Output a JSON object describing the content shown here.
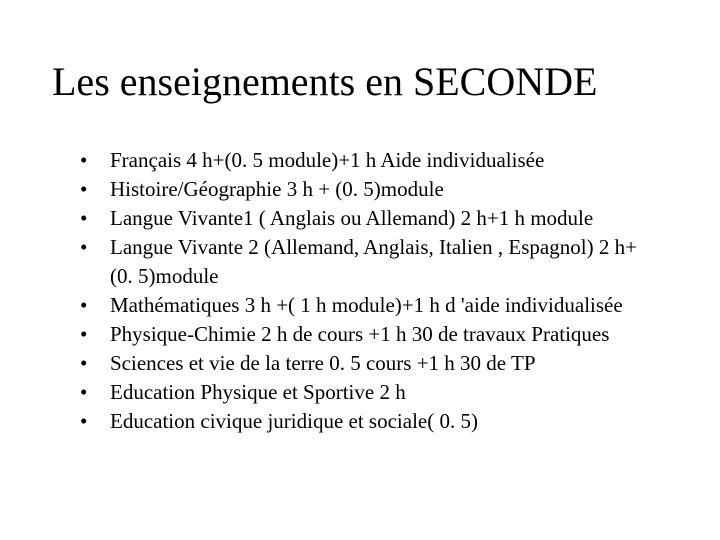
{
  "slide": {
    "title": "Les enseignements en SECONDE",
    "title_fontsize": 40,
    "title_color": "#000000",
    "background_color": "#ffffff",
    "bullets": [
      "Français 4 h+(0. 5 module)+1 h Aide individualisée",
      "Histoire/Géographie 3 h + (0. 5)module",
      "Langue Vivante1 ( Anglais ou Allemand) 2 h+1 h module",
      "Langue Vivante 2 (Allemand, Anglais, Italien , Espagnol) 2 h+ (0. 5)module",
      "Mathématiques  3 h +( 1 h module)+1 h d 'aide individualisée",
      "Physique-Chimie 2 h de cours +1 h 30 de travaux Pratiques",
      "Sciences et vie de la terre  0. 5 cours +1 h 30 de TP",
      "Education Physique et Sportive 2 h",
      "Education civique juridique et sociale( 0. 5)"
    ],
    "bullet_fontsize": 21,
    "bullet_color": "#000000",
    "font_family": "Times New Roman"
  }
}
